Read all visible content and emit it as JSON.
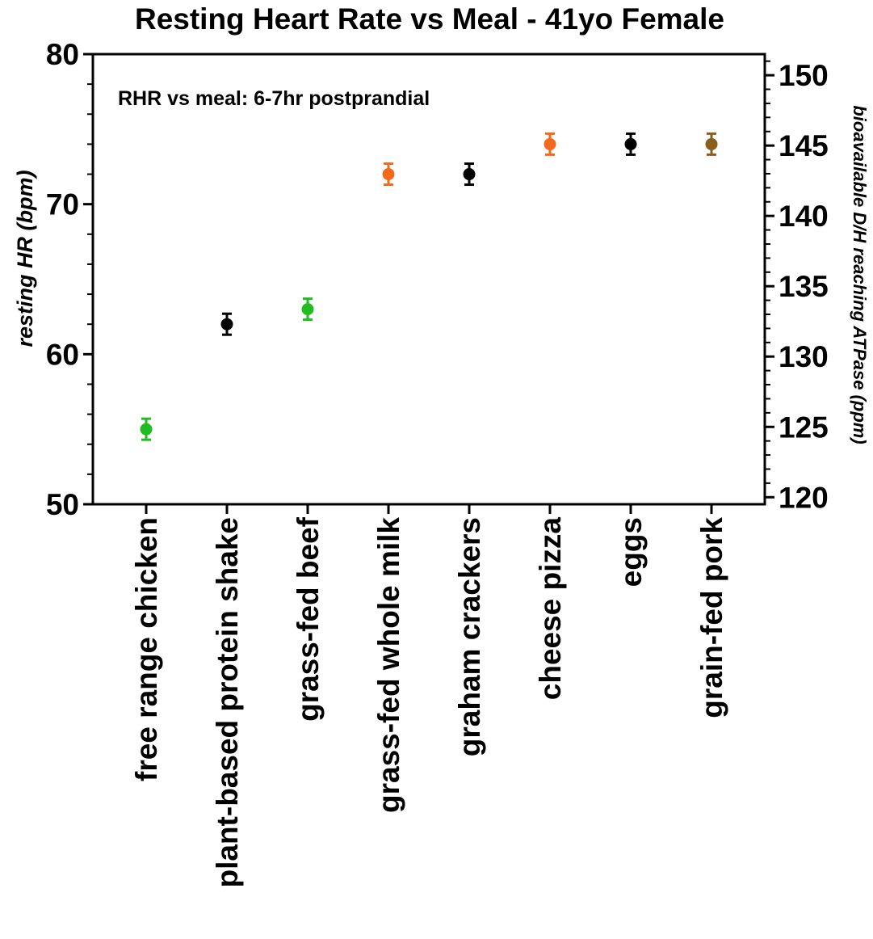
{
  "chart_data": {
    "type": "scatter",
    "title": "Resting Heart Rate vs Meal - 41yo Female",
    "annotation": "RHR vs meal: 6-7hr postprandial",
    "ylabel": "resting HR (bpm)",
    "y2label": "bioavailable D/H reaching ATPase (ppm)",
    "ylim": [
      50,
      80
    ],
    "y2lim": [
      119.5,
      151.5
    ],
    "yticks": [
      50,
      60,
      70,
      80
    ],
    "y2ticks": [
      120,
      125,
      130,
      135,
      140,
      145,
      150
    ],
    "grid": false,
    "categories": [
      "free range chicken",
      "plant-based protein shake",
      "grass-fed beef",
      "grass-fed whole milk",
      "graham crackers",
      "cheese pizza",
      "eggs",
      "grain-fed pork"
    ],
    "values": [
      55,
      62,
      63,
      72,
      72,
      74,
      74,
      74
    ],
    "error": [
      0.7,
      0.7,
      0.7,
      0.7,
      0.7,
      0.7,
      0.7,
      0.7
    ],
    "colors": [
      "#22bb22",
      "#000000",
      "#22bb22",
      "#f26b1d",
      "#000000",
      "#f26b1d",
      "#000000",
      "#8b5e20"
    ]
  }
}
